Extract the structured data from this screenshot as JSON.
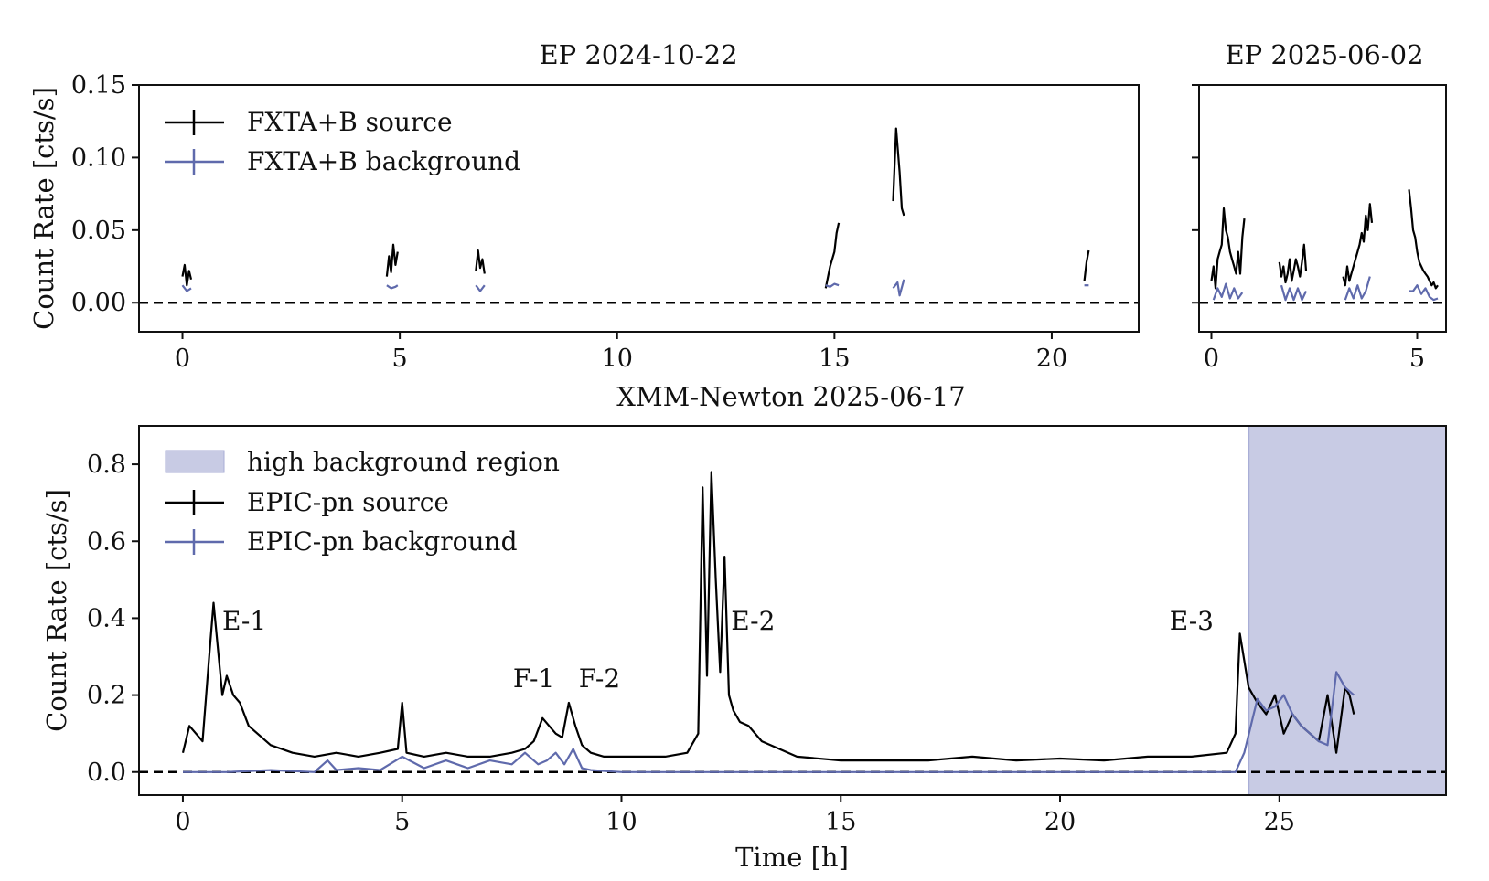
{
  "chart_data": [
    {
      "id": "ep1",
      "type": "line",
      "title": "EP 2024-10-22",
      "xlabel": "",
      "ylabel": "Count Rate [cts/s]",
      "xlim": [
        -1.0,
        22.0
      ],
      "ylim": [
        -0.02,
        0.15
      ],
      "xticks": [
        0,
        5,
        10,
        15,
        20
      ],
      "xtick_labels": [
        "0",
        "5",
        "10",
        "15",
        "20"
      ],
      "yticks": [
        0.0,
        0.05,
        0.1,
        0.15
      ],
      "ytick_labels": [
        "0.00",
        "0.05",
        "0.10",
        "0.15"
      ],
      "reference_line": {
        "y": 0.0,
        "style": "dashed",
        "color": "#000000"
      },
      "legend": [
        "FXTA+B source",
        "FXTA+B background"
      ],
      "series": [
        {
          "name": "FXTA+B source",
          "color": "#000000",
          "segments": [
            {
              "x": [
                0.0,
                0.05,
                0.1,
                0.15,
                0.2
              ],
              "y": [
                0.018,
                0.026,
                0.012,
                0.022,
                0.016
              ]
            },
            {
              "x": [
                4.7,
                4.75,
                4.8,
                4.85,
                4.9,
                4.95
              ],
              "y": [
                0.018,
                0.032,
                0.021,
                0.04,
                0.026,
                0.035
              ]
            },
            {
              "x": [
                6.75,
                6.8,
                6.85,
                6.9,
                6.95
              ],
              "y": [
                0.022,
                0.036,
                0.024,
                0.03,
                0.02
              ]
            },
            {
              "x": [
                14.8,
                14.9,
                15.0,
                15.05,
                15.1
              ],
              "y": [
                0.01,
                0.025,
                0.035,
                0.048,
                0.055
              ]
            },
            {
              "x": [
                16.35,
                16.42,
                16.5,
                16.55,
                16.6
              ],
              "y": [
                0.07,
                0.12,
                0.09,
                0.065,
                0.06
              ]
            },
            {
              "x": [
                20.75,
                20.8,
                20.85
              ],
              "y": [
                0.015,
                0.028,
                0.036
              ]
            }
          ]
        },
        {
          "name": "FXTA+B background",
          "color": "#5f6aac",
          "segments": [
            {
              "x": [
                0.0,
                0.1,
                0.2
              ],
              "y": [
                0.012,
                0.008,
                0.01
              ]
            },
            {
              "x": [
                4.7,
                4.8,
                4.9,
                4.95
              ],
              "y": [
                0.012,
                0.01,
                0.011,
                0.012
              ]
            },
            {
              "x": [
                6.75,
                6.85,
                6.95
              ],
              "y": [
                0.012,
                0.008,
                0.012
              ]
            },
            {
              "x": [
                14.8,
                14.9,
                15.0,
                15.1
              ],
              "y": [
                0.012,
                0.011,
                0.013,
                0.012
              ]
            },
            {
              "x": [
                16.35,
                16.45,
                16.5,
                16.6
              ],
              "y": [
                0.01,
                0.014,
                0.005,
                0.016
              ]
            },
            {
              "x": [
                20.75,
                20.85
              ],
              "y": [
                0.012,
                0.012
              ]
            }
          ]
        }
      ]
    },
    {
      "id": "ep2",
      "type": "line",
      "title": "EP 2025-06-02",
      "xlabel": "",
      "ylabel": "",
      "xlim": [
        -0.3,
        5.7
      ],
      "ylim": [
        -0.02,
        0.15
      ],
      "xticks": [
        0,
        5
      ],
      "xtick_labels": [
        "0",
        "5"
      ],
      "yticks": [
        0.0,
        0.05,
        0.1,
        0.15
      ],
      "ytick_labels": [
        "",
        "",
        "",
        ""
      ],
      "reference_line": {
        "y": 0.0,
        "style": "dashed",
        "color": "#000000"
      },
      "series": [
        {
          "name": "FXTA+B source",
          "color": "#000000",
          "segments": [
            {
              "x": [
                0.0,
                0.05,
                0.1,
                0.15,
                0.2,
                0.25,
                0.3,
                0.35,
                0.4,
                0.45,
                0.5,
                0.55,
                0.6,
                0.65,
                0.7,
                0.75,
                0.8
              ],
              "y": [
                0.015,
                0.025,
                0.01,
                0.03,
                0.035,
                0.04,
                0.065,
                0.05,
                0.045,
                0.035,
                0.03,
                0.025,
                0.02,
                0.035,
                0.02,
                0.045,
                0.058
              ]
            },
            {
              "x": [
                1.65,
                1.7,
                1.75,
                1.8,
                1.85,
                1.9,
                1.95,
                2.0,
                2.05,
                2.1,
                2.15,
                2.2,
                2.25,
                2.3
              ],
              "y": [
                0.028,
                0.018,
                0.025,
                0.014,
                0.02,
                0.03,
                0.015,
                0.022,
                0.03,
                0.025,
                0.018,
                0.028,
                0.04,
                0.022
              ]
            },
            {
              "x": [
                3.2,
                3.25,
                3.3,
                3.35,
                3.4,
                3.45,
                3.5,
                3.55,
                3.6,
                3.65,
                3.7,
                3.75,
                3.8,
                3.85,
                3.9
              ],
              "y": [
                0.018,
                0.012,
                0.025,
                0.015,
                0.02,
                0.025,
                0.03,
                0.035,
                0.04,
                0.048,
                0.042,
                0.06,
                0.05,
                0.068,
                0.055
              ]
            },
            {
              "x": [
                4.8,
                4.85,
                4.9,
                4.95,
                5.0,
                5.05,
                5.1,
                5.15,
                5.2,
                5.25,
                5.3,
                5.35,
                5.4,
                5.45,
                5.5
              ],
              "y": [
                0.078,
                0.065,
                0.05,
                0.045,
                0.035,
                0.028,
                0.025,
                0.022,
                0.02,
                0.018,
                0.015,
                0.012,
                0.014,
                0.01,
                0.012
              ]
            }
          ]
        },
        {
          "name": "FXTA+B background",
          "color": "#5f6aac",
          "segments": [
            {
              "x": [
                0.05,
                0.15,
                0.25,
                0.35,
                0.45,
                0.55,
                0.65,
                0.75
              ],
              "y": [
                0.002,
                0.01,
                0.004,
                0.013,
                0.003,
                0.01,
                0.003,
                0.007
              ]
            },
            {
              "x": [
                1.7,
                1.8,
                1.9,
                2.0,
                2.1,
                2.2,
                2.3
              ],
              "y": [
                0.012,
                0.002,
                0.01,
                0.002,
                0.01,
                0.002,
                0.008
              ]
            },
            {
              "x": [
                3.25,
                3.35,
                3.45,
                3.55,
                3.65,
                3.75,
                3.85
              ],
              "y": [
                0.002,
                0.01,
                0.003,
                0.012,
                0.003,
                0.008,
                0.018
              ]
            },
            {
              "x": [
                4.8,
                4.9,
                5.0,
                5.1,
                5.2,
                5.3,
                5.4,
                5.5
              ],
              "y": [
                0.008,
                0.008,
                0.012,
                0.006,
                0.01,
                0.004,
                0.002,
                0.003
              ]
            }
          ]
        }
      ]
    },
    {
      "id": "xmm",
      "type": "line",
      "title": "XMM-Newton 2025-06-17",
      "xlabel": "Time [h]",
      "ylabel": "Count Rate [cts/s]",
      "xlim": [
        -1.0,
        28.8
      ],
      "ylim": [
        -0.06,
        0.9
      ],
      "xticks": [
        0,
        5,
        10,
        15,
        20,
        25
      ],
      "xtick_labels": [
        "0",
        "5",
        "10",
        "15",
        "20",
        "25"
      ],
      "yticks": [
        0.0,
        0.2,
        0.4,
        0.6,
        0.8
      ],
      "ytick_labels": [
        "0.0",
        "0.2",
        "0.4",
        "0.6",
        "0.8"
      ],
      "reference_line": {
        "y": 0.0,
        "style": "dashed",
        "color": "#000000"
      },
      "shaded_region": {
        "label": "high background region",
        "x_start": 24.3,
        "x_end": 28.8,
        "color": "#b8bcdc"
      },
      "legend": [
        "high background region",
        "EPIC-pn source",
        "EPIC-pn background"
      ],
      "annotations": [
        {
          "text": "E-1",
          "x": 1.4,
          "y": 0.37
        },
        {
          "text": "F-1",
          "x": 8.0,
          "y": 0.22
        },
        {
          "text": "F-2",
          "x": 9.5,
          "y": 0.22
        },
        {
          "text": "E-2",
          "x": 13.0,
          "y": 0.37
        },
        {
          "text": "E-3",
          "x": 23.0,
          "y": 0.37
        }
      ],
      "series": [
        {
          "name": "EPIC-pn source",
          "color": "#000000",
          "x": [
            0.0,
            0.15,
            0.3,
            0.45,
            0.6,
            0.7,
            0.8,
            0.9,
            1.0,
            1.15,
            1.3,
            1.5,
            1.7,
            2.0,
            2.5,
            3.0,
            3.5,
            4.0,
            4.5,
            4.9,
            5.0,
            5.1,
            5.5,
            6.0,
            6.5,
            7.0,
            7.5,
            7.8,
            8.0,
            8.2,
            8.35,
            8.5,
            8.65,
            8.8,
            8.95,
            9.1,
            9.3,
            9.6,
            10.0,
            10.5,
            11.0,
            11.5,
            11.75,
            11.85,
            11.95,
            12.05,
            12.15,
            12.25,
            12.35,
            12.45,
            12.55,
            12.7,
            12.9,
            13.2,
            13.6,
            14.0,
            15.0,
            16.0,
            17.0,
            18.0,
            19.0,
            20.0,
            21.0,
            22.0,
            23.0,
            23.8,
            24.0,
            24.1,
            24.3,
            24.5,
            24.7,
            24.9,
            25.1,
            25.3,
            25.5,
            25.7,
            25.9,
            26.1,
            26.3,
            26.5,
            26.6,
            26.7
          ],
          "y": [
            0.05,
            0.12,
            0.1,
            0.08,
            0.3,
            0.44,
            0.32,
            0.2,
            0.25,
            0.2,
            0.18,
            0.12,
            0.1,
            0.07,
            0.05,
            0.04,
            0.05,
            0.04,
            0.05,
            0.06,
            0.18,
            0.05,
            0.04,
            0.05,
            0.04,
            0.04,
            0.05,
            0.06,
            0.08,
            0.14,
            0.12,
            0.1,
            0.09,
            0.18,
            0.12,
            0.07,
            0.05,
            0.04,
            0.04,
            0.04,
            0.04,
            0.05,
            0.1,
            0.74,
            0.25,
            0.78,
            0.5,
            0.26,
            0.56,
            0.2,
            0.16,
            0.13,
            0.12,
            0.08,
            0.06,
            0.04,
            0.03,
            0.03,
            0.03,
            0.04,
            0.03,
            0.035,
            0.03,
            0.04,
            0.04,
            0.05,
            0.1,
            0.36,
            0.22,
            0.18,
            0.15,
            0.2,
            0.1,
            0.15,
            0.12,
            0.1,
            0.08,
            0.2,
            0.05,
            0.22,
            0.2,
            0.15
          ]
        },
        {
          "name": "EPIC-pn background",
          "color": "#5f6aac",
          "x": [
            0.0,
            1.0,
            2.0,
            3.0,
            3.3,
            3.5,
            4.0,
            4.5,
            5.0,
            5.5,
            6.0,
            6.5,
            7.0,
            7.5,
            7.8,
            8.1,
            8.3,
            8.5,
            8.7,
            8.9,
            9.1,
            9.3,
            10.0,
            12.0,
            15.0,
            18.0,
            21.0,
            24.0,
            24.2,
            24.35,
            24.5,
            24.7,
            24.9,
            25.1,
            25.3,
            25.5,
            25.7,
            25.9,
            26.1,
            26.3,
            26.5,
            26.7
          ],
          "y": [
            0.0,
            0.0,
            0.005,
            0.0,
            0.03,
            0.005,
            0.01,
            0.005,
            0.04,
            0.01,
            0.03,
            0.01,
            0.03,
            0.02,
            0.05,
            0.02,
            0.03,
            0.05,
            0.02,
            0.06,
            0.01,
            0.005,
            0.0,
            0.0,
            0.0,
            0.0,
            0.0,
            0.0,
            0.05,
            0.12,
            0.19,
            0.16,
            0.17,
            0.2,
            0.15,
            0.12,
            0.1,
            0.08,
            0.07,
            0.26,
            0.22,
            0.2
          ]
        }
      ]
    }
  ]
}
